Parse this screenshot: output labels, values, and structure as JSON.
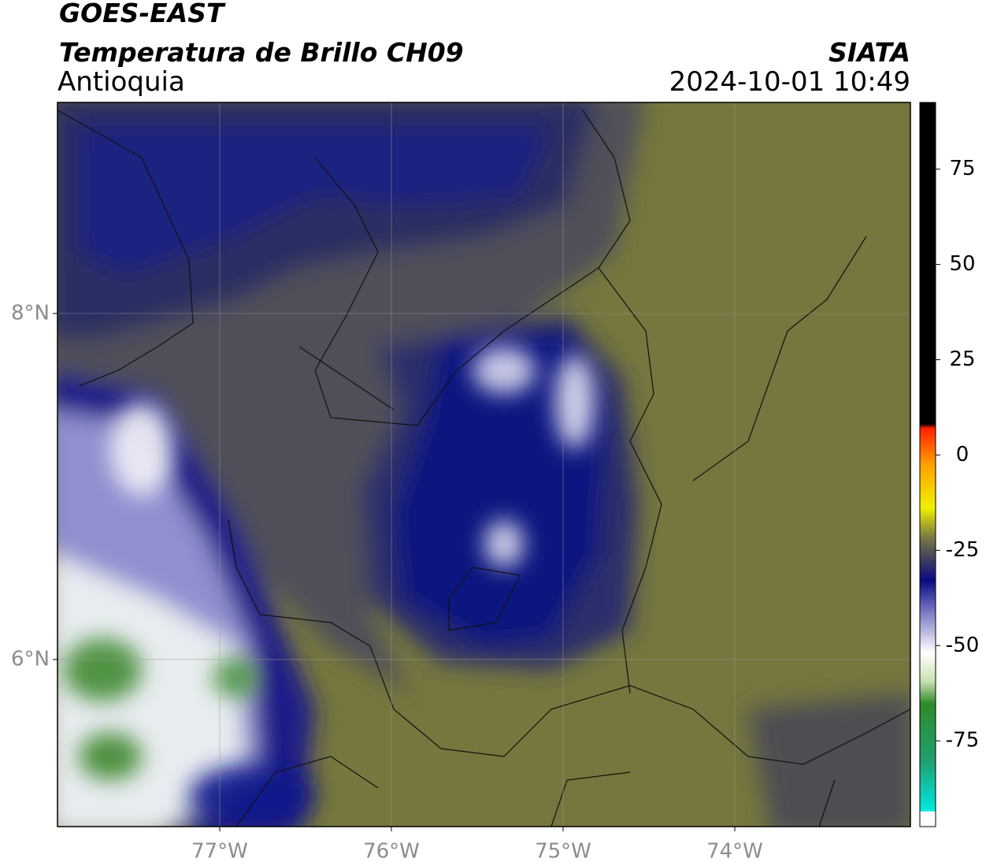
{
  "header": {
    "satellite": "GOES-EAST",
    "product": "Temperatura de Brillo CH09",
    "region": "Antioquia",
    "source": "SIATA",
    "datetime": "2024-10-01 10:49"
  },
  "map": {
    "xlim": [
      -77.945,
      -72.977
    ],
    "ylim": [
      5.034,
      9.22
    ],
    "xticks": [
      {
        "value": -77,
        "label": "77°W"
      },
      {
        "value": -76,
        "label": "76°W"
      },
      {
        "value": -75,
        "label": "75°W"
      },
      {
        "value": -74,
        "label": "74°W"
      }
    ],
    "yticks": [
      {
        "value": 6,
        "label": "6°N"
      },
      {
        "value": 8,
        "label": "8°N"
      }
    ],
    "grid": true
  },
  "colorbar": {
    "lim": [
      -97.5,
      92.5
    ],
    "ticks": [
      -75,
      -50,
      -25,
      0,
      25,
      50,
      75
    ]
  }
}
